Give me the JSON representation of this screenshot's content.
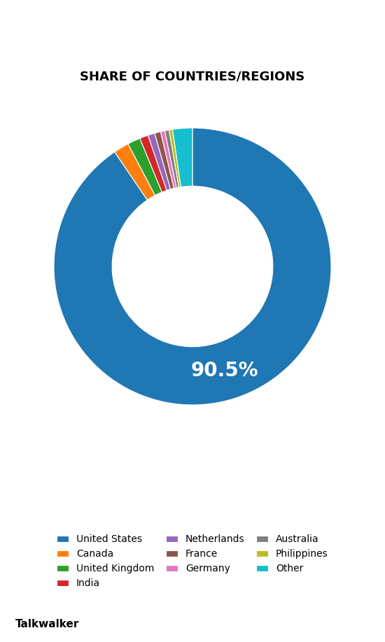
{
  "chart_data": {
    "type": "pie",
    "title": "SHARE OF COUNTRIES/REGIONS",
    "categories": [
      "United States",
      "Canada",
      "United Kingdom",
      "India",
      "Netherlands",
      "France",
      "Germany",
      "Australia",
      "Philippines",
      "Other"
    ],
    "values": [
      90.5,
      1.8,
      1.5,
      1.0,
      0.8,
      0.7,
      0.5,
      0.5,
      0.4,
      2.3
    ],
    "value_labels": [
      "90.5%",
      null,
      null,
      null,
      null,
      null,
      null,
      null,
      null,
      null
    ],
    "legend": "lower center",
    "annotations": [
      "Talkwalker"
    ]
  }
}
